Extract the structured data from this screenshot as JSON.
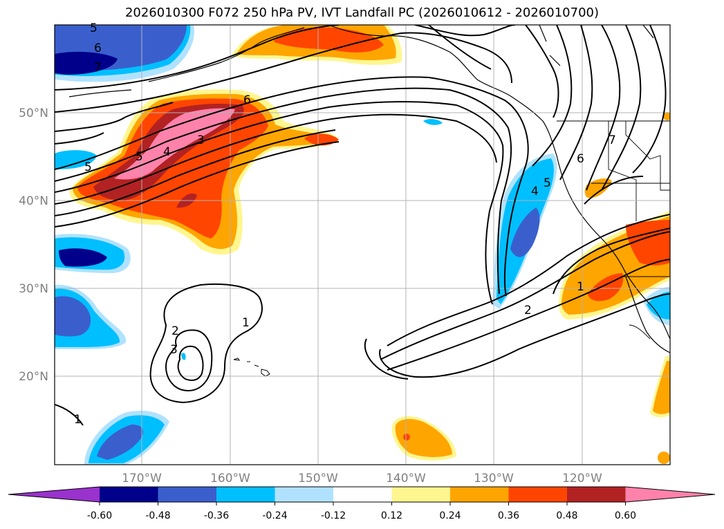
{
  "title": "2026010300 F072 250 hPa PV, IVT Landfall PC (2026010612 - 2026010700)",
  "lat_ticks": [
    "50°N",
    "40°N",
    "30°N",
    "20°N"
  ],
  "lon_ticks": [
    "170°W",
    "160°W",
    "150°W",
    "140°W",
    "130°W",
    "120°W"
  ],
  "colorbar": {
    "colors": [
      "#9a32cd",
      "#00008b",
      "#3a5fcd",
      "#00bfff",
      "#b0e2ff",
      "#ffffff",
      "#fff68f",
      "#ffa500",
      "#ff4500",
      "#b22222",
      "#ff82ab"
    ],
    "levels": [
      "-0.60",
      "-0.48",
      "-0.36",
      "-0.24",
      "-0.12",
      "0.12",
      "0.24",
      "0.36",
      "0.48",
      "0.60"
    ]
  },
  "contour_labels": [
    "5",
    "6",
    "7",
    "6",
    "5",
    "4",
    "3",
    "5",
    "2",
    "3",
    "1",
    "1",
    "4",
    "5",
    "6",
    "7",
    "1",
    "2"
  ]
}
